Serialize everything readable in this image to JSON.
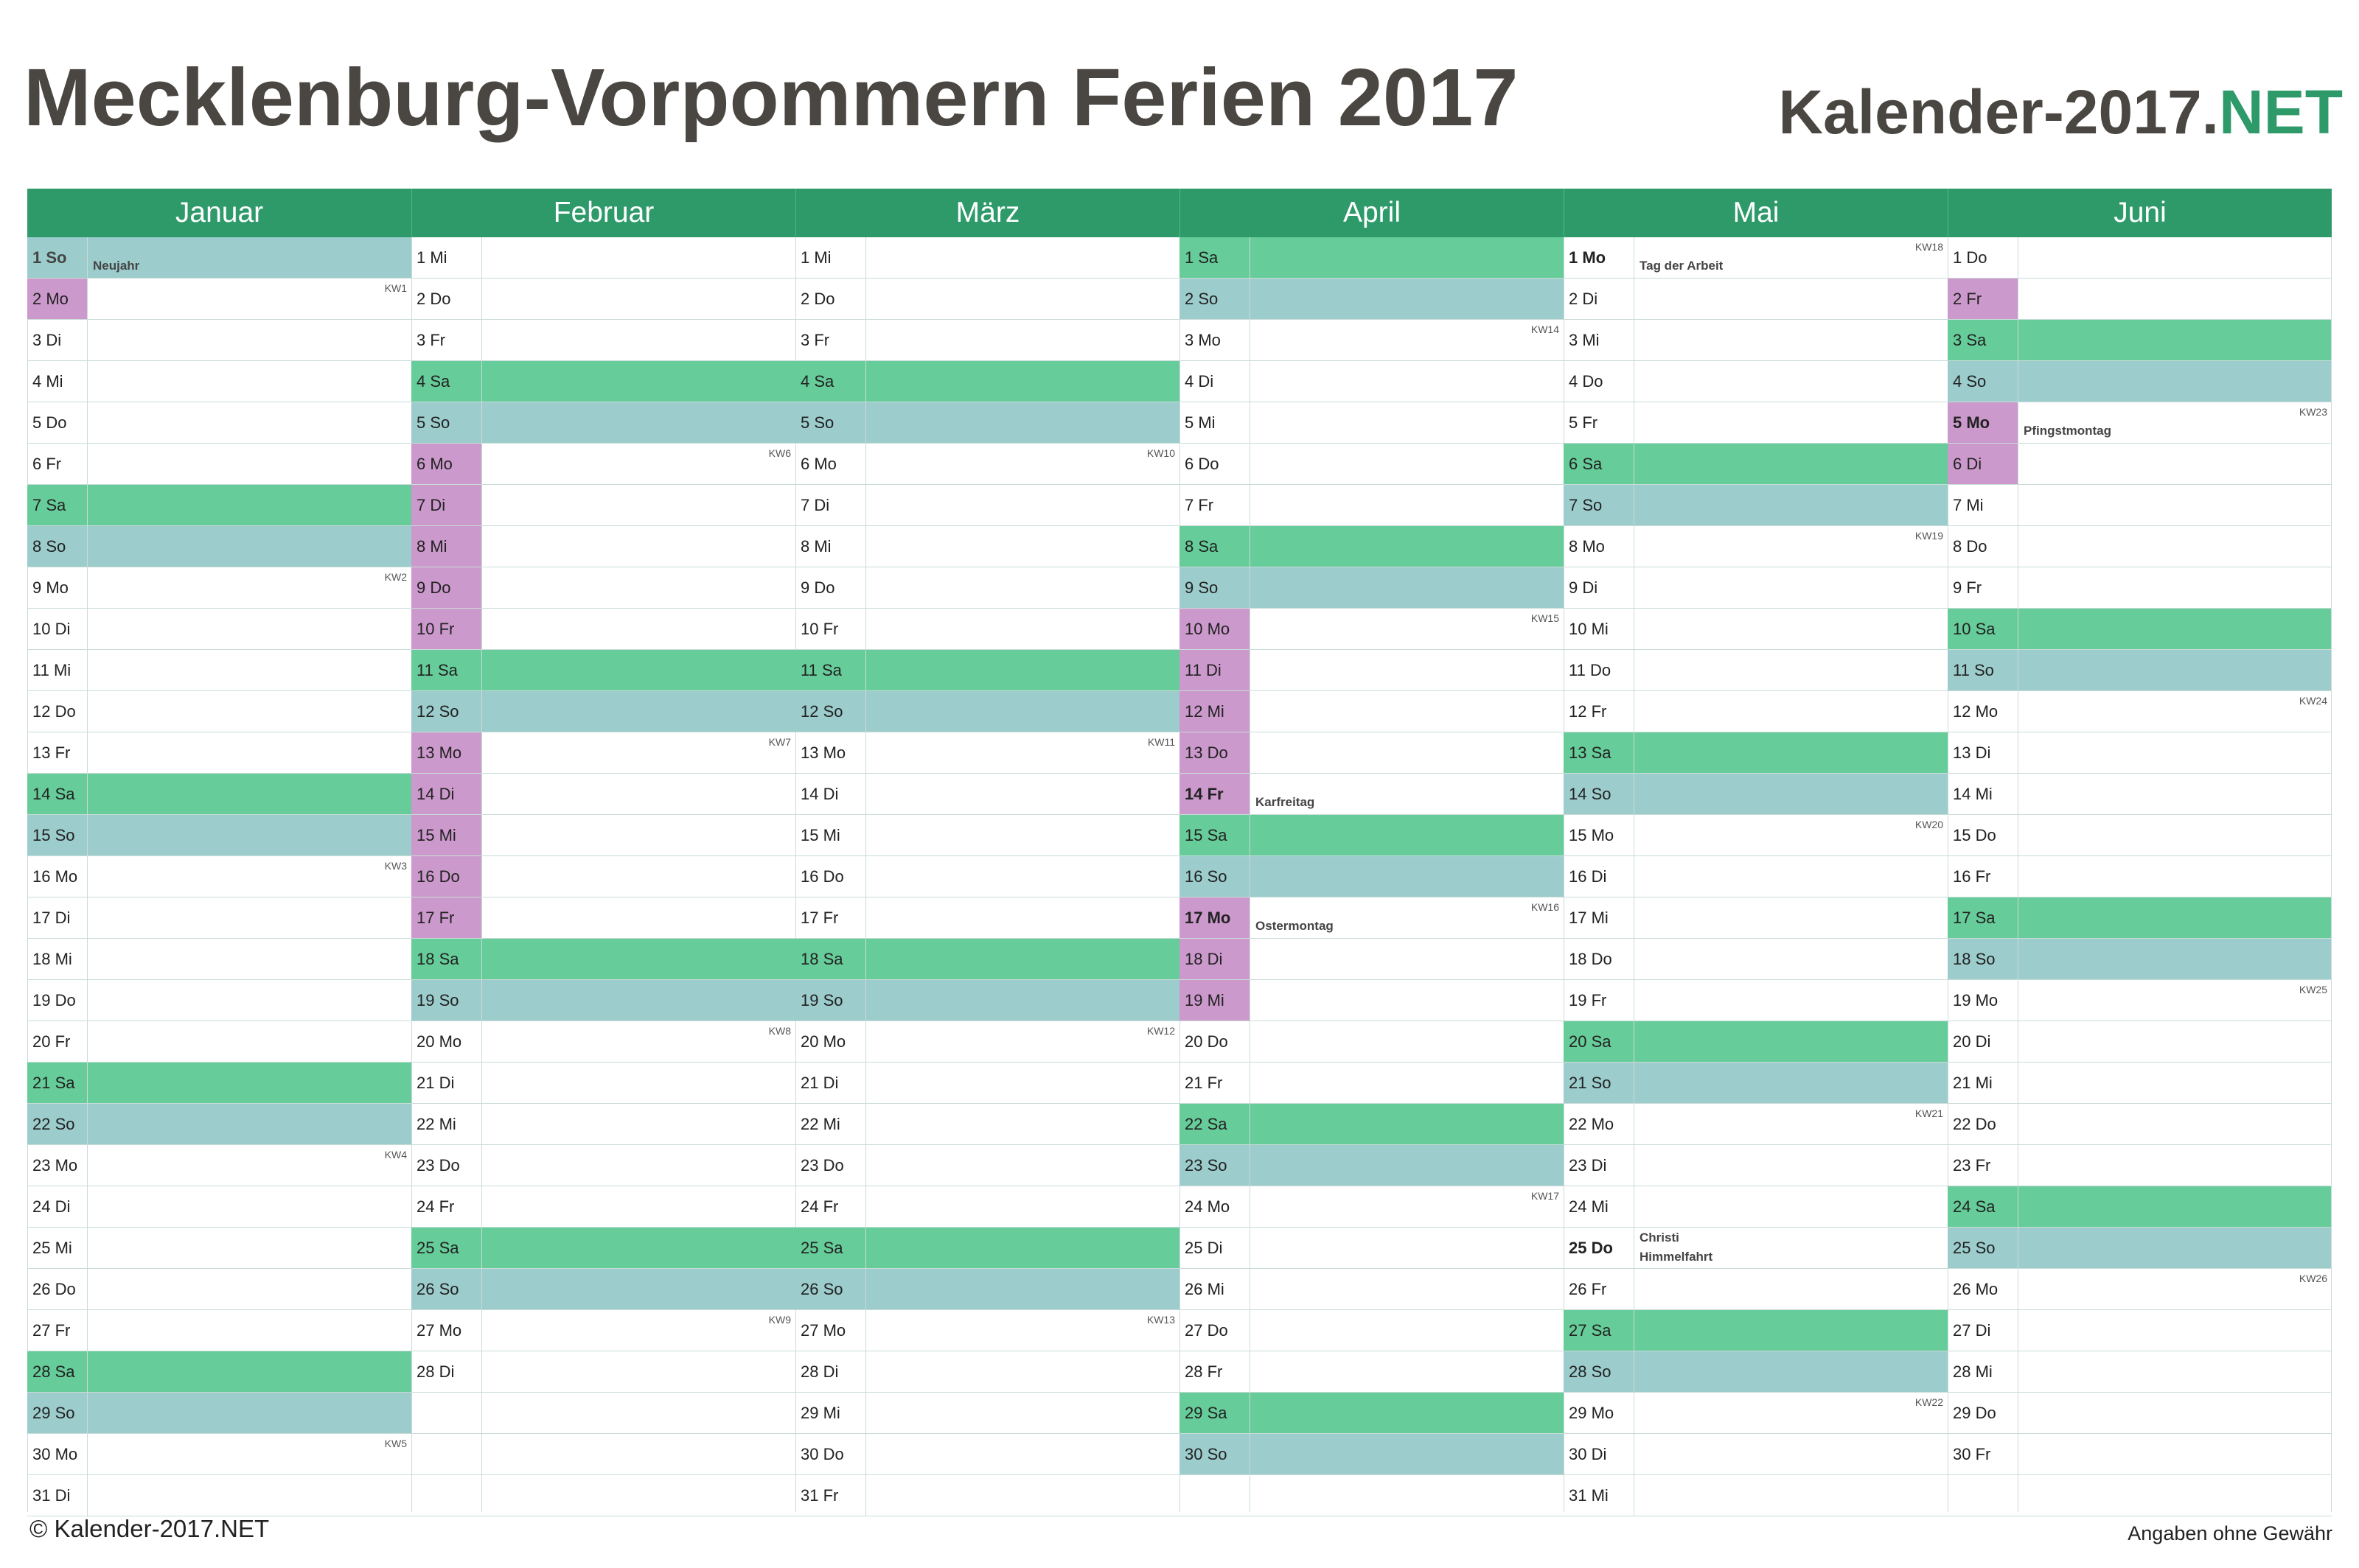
{
  "title": "Mecklenburg-Vorpommern Ferien 2017",
  "brand": {
    "main": "Kalender-2017.",
    "suffix": "NET"
  },
  "colors": {
    "header": "#2e9a6a",
    "saturday": "#66cc99",
    "sunday": "#9ccccc",
    "holiday_vacation": "#cc99cc"
  },
  "months": [
    {
      "name": "Januar",
      "days": [
        {
          "label": "1 So",
          "type": "so",
          "feiertag": true,
          "note": "Neujahr"
        },
        {
          "label": "2 Mo",
          "hol": true,
          "kw": "KW1"
        },
        {
          "label": "3 Di"
        },
        {
          "label": "4 Mi"
        },
        {
          "label": "5 Do"
        },
        {
          "label": "6 Fr"
        },
        {
          "label": "7 Sa",
          "type": "sa"
        },
        {
          "label": "8 So",
          "type": "so"
        },
        {
          "label": "9 Mo",
          "kw": "KW2"
        },
        {
          "label": "10 Di"
        },
        {
          "label": "11 Mi"
        },
        {
          "label": "12 Do"
        },
        {
          "label": "13 Fr"
        },
        {
          "label": "14 Sa",
          "type": "sa"
        },
        {
          "label": "15 So",
          "type": "so"
        },
        {
          "label": "16 Mo",
          "kw": "KW3"
        },
        {
          "label": "17 Di"
        },
        {
          "label": "18 Mi"
        },
        {
          "label": "19 Do"
        },
        {
          "label": "20 Fr"
        },
        {
          "label": "21 Sa",
          "type": "sa"
        },
        {
          "label": "22 So",
          "type": "so"
        },
        {
          "label": "23 Mo",
          "kw": "KW4"
        },
        {
          "label": "24 Di"
        },
        {
          "label": "25 Mi"
        },
        {
          "label": "26 Do"
        },
        {
          "label": "27 Fr"
        },
        {
          "label": "28 Sa",
          "type": "sa"
        },
        {
          "label": "29 So",
          "type": "so"
        },
        {
          "label": "30 Mo",
          "kw": "KW5"
        },
        {
          "label": "31 Di"
        }
      ]
    },
    {
      "name": "Februar",
      "days": [
        {
          "label": "1 Mi"
        },
        {
          "label": "2 Do"
        },
        {
          "label": "3 Fr"
        },
        {
          "label": "4 Sa",
          "type": "sa"
        },
        {
          "label": "5 So",
          "type": "so"
        },
        {
          "label": "6 Mo",
          "hol": true,
          "kw": "KW6"
        },
        {
          "label": "7 Di",
          "hol": true
        },
        {
          "label": "8 Mi",
          "hol": true
        },
        {
          "label": "9 Do",
          "hol": true
        },
        {
          "label": "10 Fr",
          "hol": true
        },
        {
          "label": "11 Sa",
          "type": "sa"
        },
        {
          "label": "12 So",
          "type": "so"
        },
        {
          "label": "13 Mo",
          "hol": true,
          "kw": "KW7"
        },
        {
          "label": "14 Di",
          "hol": true
        },
        {
          "label": "15 Mi",
          "hol": true
        },
        {
          "label": "16 Do",
          "hol": true
        },
        {
          "label": "17 Fr",
          "hol": true
        },
        {
          "label": "18 Sa",
          "type": "sa"
        },
        {
          "label": "19 So",
          "type": "so"
        },
        {
          "label": "20 Mo",
          "kw": "KW8"
        },
        {
          "label": "21 Di"
        },
        {
          "label": "22 Mi"
        },
        {
          "label": "23 Do"
        },
        {
          "label": "24 Fr"
        },
        {
          "label": "25 Sa",
          "type": "sa"
        },
        {
          "label": "26 So",
          "type": "so"
        },
        {
          "label": "27 Mo",
          "kw": "KW9"
        },
        {
          "label": "28 Di"
        }
      ]
    },
    {
      "name": "März",
      "days": [
        {
          "label": "1 Mi"
        },
        {
          "label": "2 Do"
        },
        {
          "label": "3 Fr"
        },
        {
          "label": "4 Sa",
          "type": "sa"
        },
        {
          "label": "5 So",
          "type": "so"
        },
        {
          "label": "6 Mo",
          "kw": "KW10"
        },
        {
          "label": "7 Di"
        },
        {
          "label": "8 Mi"
        },
        {
          "label": "9 Do"
        },
        {
          "label": "10 Fr"
        },
        {
          "label": "11 Sa",
          "type": "sa"
        },
        {
          "label": "12 So",
          "type": "so"
        },
        {
          "label": "13 Mo",
          "kw": "KW11"
        },
        {
          "label": "14 Di"
        },
        {
          "label": "15 Mi"
        },
        {
          "label": "16 Do"
        },
        {
          "label": "17 Fr"
        },
        {
          "label": "18 Sa",
          "type": "sa"
        },
        {
          "label": "19 So",
          "type": "so"
        },
        {
          "label": "20 Mo",
          "kw": "KW12"
        },
        {
          "label": "21 Di"
        },
        {
          "label": "22 Mi"
        },
        {
          "label": "23 Do"
        },
        {
          "label": "24 Fr"
        },
        {
          "label": "25 Sa",
          "type": "sa"
        },
        {
          "label": "26 So",
          "type": "so"
        },
        {
          "label": "27 Mo",
          "kw": "KW13"
        },
        {
          "label": "28 Di"
        },
        {
          "label": "29 Mi"
        },
        {
          "label": "30 Do"
        },
        {
          "label": "31 Fr"
        }
      ]
    },
    {
      "name": "April",
      "days": [
        {
          "label": "1 Sa",
          "type": "sa"
        },
        {
          "label": "2 So",
          "type": "so"
        },
        {
          "label": "3 Mo",
          "kw": "KW14"
        },
        {
          "label": "4 Di"
        },
        {
          "label": "5 Mi"
        },
        {
          "label": "6 Do"
        },
        {
          "label": "7 Fr"
        },
        {
          "label": "8 Sa",
          "type": "sa"
        },
        {
          "label": "9 So",
          "type": "so"
        },
        {
          "label": "10 Mo",
          "hol": true,
          "kw": "KW15"
        },
        {
          "label": "11 Di",
          "hol": true
        },
        {
          "label": "12 Mi",
          "hol": true
        },
        {
          "label": "13 Do",
          "hol": true
        },
        {
          "label": "14 Fr",
          "hol": true,
          "feiertag": true,
          "note": "Karfreitag"
        },
        {
          "label": "15 Sa",
          "type": "sa"
        },
        {
          "label": "16 So",
          "type": "so"
        },
        {
          "label": "17 Mo",
          "hol": true,
          "feiertag": true,
          "note": "Ostermontag",
          "kw": "KW16"
        },
        {
          "label": "18 Di",
          "hol": true
        },
        {
          "label": "19 Mi",
          "hol": true
        },
        {
          "label": "20 Do"
        },
        {
          "label": "21 Fr"
        },
        {
          "label": "22 Sa",
          "type": "sa"
        },
        {
          "label": "23 So",
          "type": "so"
        },
        {
          "label": "24 Mo",
          "kw": "KW17"
        },
        {
          "label": "25 Di"
        },
        {
          "label": "26 Mi"
        },
        {
          "label": "27 Do"
        },
        {
          "label": "28 Fr"
        },
        {
          "label": "29 Sa",
          "type": "sa"
        },
        {
          "label": "30 So",
          "type": "so"
        }
      ]
    },
    {
      "name": "Mai",
      "days": [
        {
          "label": "1 Mo",
          "feiertag": true,
          "note": "Tag der Arbeit",
          "kw": "KW18"
        },
        {
          "label": "2 Di"
        },
        {
          "label": "3 Mi"
        },
        {
          "label": "4 Do"
        },
        {
          "label": "5 Fr"
        },
        {
          "label": "6 Sa",
          "type": "sa"
        },
        {
          "label": "7 So",
          "type": "so"
        },
        {
          "label": "8 Mo",
          "kw": "KW19"
        },
        {
          "label": "9 Di"
        },
        {
          "label": "10 Mi"
        },
        {
          "label": "11 Do"
        },
        {
          "label": "12 Fr"
        },
        {
          "label": "13 Sa",
          "type": "sa"
        },
        {
          "label": "14 So",
          "type": "so"
        },
        {
          "label": "15 Mo",
          "kw": "KW20"
        },
        {
          "label": "16 Di"
        },
        {
          "label": "17 Mi"
        },
        {
          "label": "18 Do"
        },
        {
          "label": "19 Fr"
        },
        {
          "label": "20 Sa",
          "type": "sa"
        },
        {
          "label": "21 So",
          "type": "so"
        },
        {
          "label": "22 Mo",
          "kw": "KW21"
        },
        {
          "label": "23 Di"
        },
        {
          "label": "24 Mi"
        },
        {
          "label": "25 Do",
          "feiertag": true,
          "note": "Christi Himmelfahrt"
        },
        {
          "label": "26 Fr"
        },
        {
          "label": "27 Sa",
          "type": "sa"
        },
        {
          "label": "28 So",
          "type": "so"
        },
        {
          "label": "29 Mo",
          "kw": "KW22"
        },
        {
          "label": "30 Di"
        },
        {
          "label": "31 Mi"
        }
      ]
    },
    {
      "name": "Juni",
      "days": [
        {
          "label": "1 Do"
        },
        {
          "label": "2 Fr",
          "hol": true
        },
        {
          "label": "3 Sa",
          "type": "sa"
        },
        {
          "label": "4 So",
          "type": "so"
        },
        {
          "label": "5 Mo",
          "hol": true,
          "feiertag": true,
          "note": "Pfingstmontag",
          "kw": "KW23"
        },
        {
          "label": "6 Di",
          "hol": true
        },
        {
          "label": "7 Mi"
        },
        {
          "label": "8 Do"
        },
        {
          "label": "9 Fr"
        },
        {
          "label": "10 Sa",
          "type": "sa"
        },
        {
          "label": "11 So",
          "type": "so"
        },
        {
          "label": "12 Mo",
          "kw": "KW24"
        },
        {
          "label": "13 Di"
        },
        {
          "label": "14 Mi"
        },
        {
          "label": "15 Do"
        },
        {
          "label": "16 Fr"
        },
        {
          "label": "17 Sa",
          "type": "sa"
        },
        {
          "label": "18 So",
          "type": "so"
        },
        {
          "label": "19 Mo",
          "kw": "KW25"
        },
        {
          "label": "20 Di"
        },
        {
          "label": "21 Mi"
        },
        {
          "label": "22 Do"
        },
        {
          "label": "23 Fr"
        },
        {
          "label": "24 Sa",
          "type": "sa"
        },
        {
          "label": "25 So",
          "type": "so"
        },
        {
          "label": "26 Mo",
          "kw": "KW26"
        },
        {
          "label": "27 Di"
        },
        {
          "label": "28 Mi"
        },
        {
          "label": "29 Do"
        },
        {
          "label": "30 Fr"
        }
      ]
    }
  ],
  "footer": {
    "left": "© Kalender-2017.NET",
    "right": "Angaben ohne Gewähr"
  }
}
